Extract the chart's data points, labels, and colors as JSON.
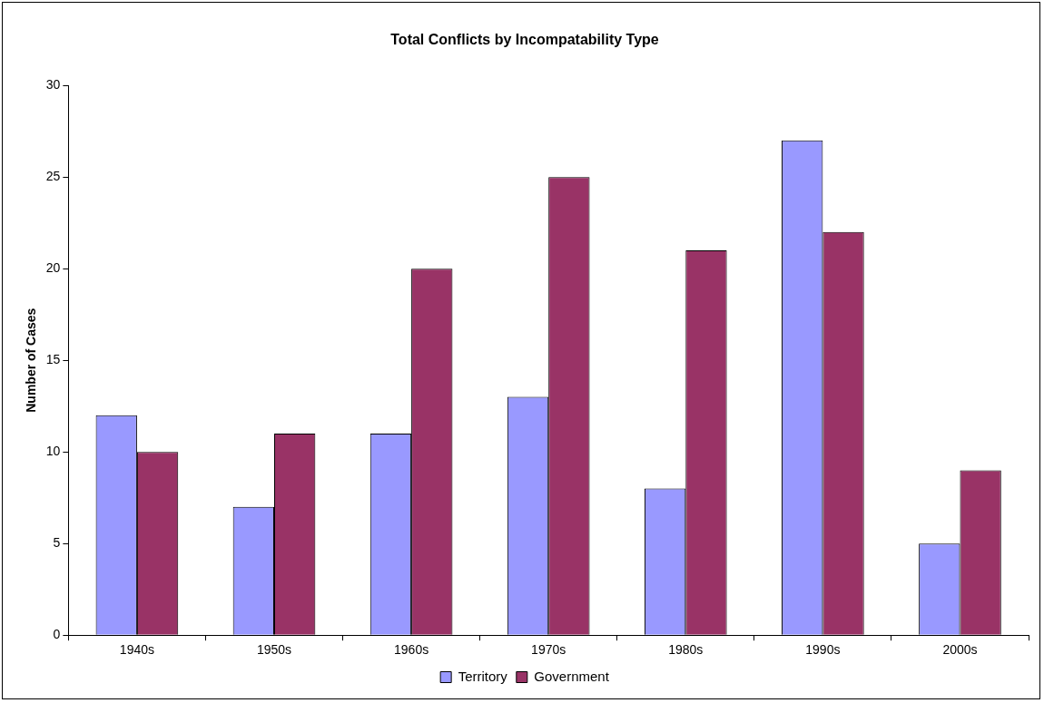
{
  "chart_data": {
    "type": "bar",
    "title": "Total Conflicts by Incompatability Type",
    "ylabel": "Number of Cases",
    "categories": [
      "1940s",
      "1950s",
      "1960s",
      "1970s",
      "1980s",
      "1990s",
      "2000s"
    ],
    "series": [
      {
        "name": "Territory",
        "color": "#9999ff",
        "values": [
          12,
          7,
          11,
          13,
          8,
          27,
          5
        ]
      },
      {
        "name": "Government",
        "color": "#993366",
        "values": [
          10,
          11,
          20,
          25,
          21,
          22,
          9
        ]
      }
    ],
    "ylim": [
      0,
      30
    ],
    "yticks": [
      0,
      5,
      10,
      15,
      20,
      25,
      30
    ],
    "grid": false,
    "legend": "bottom"
  }
}
